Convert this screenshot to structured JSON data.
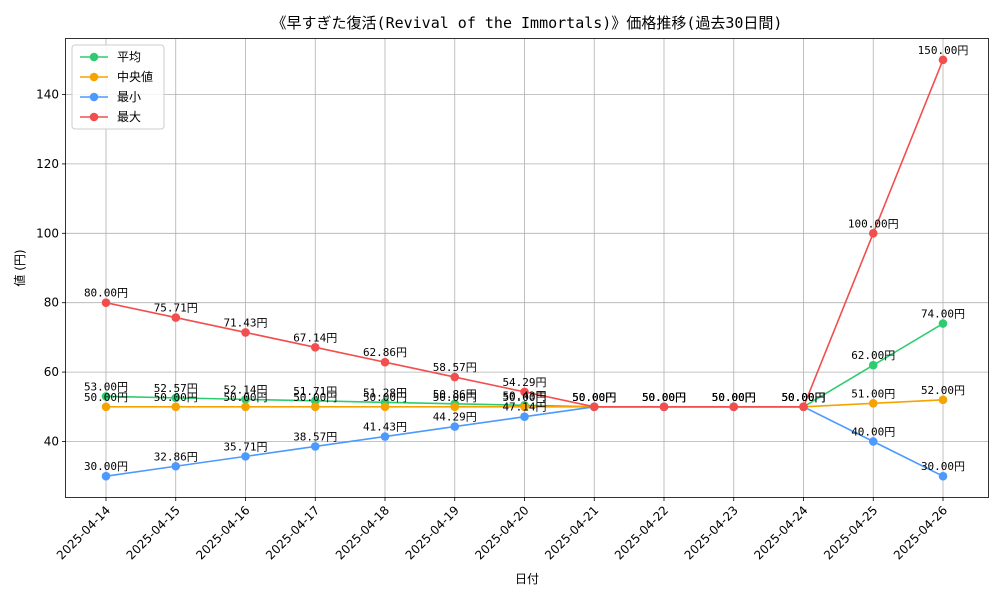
{
  "chart_data": {
    "type": "line",
    "title": "《早すぎた復活(Revival of the Immortals)》価格推移(過去30日間)",
    "xlabel": "日付",
    "ylabel": "値 (円)",
    "categories": [
      "2025-04-14",
      "2025-04-15",
      "2025-04-16",
      "2025-04-17",
      "2025-04-18",
      "2025-04-19",
      "2025-04-20",
      "2025-04-21",
      "2025-04-22",
      "2025-04-23",
      "2025-04-24",
      "2025-04-25",
      "2025-04-26"
    ],
    "ylim": [
      24,
      156
    ],
    "yticks": [
      40,
      60,
      80,
      100,
      120,
      140
    ],
    "grid": true,
    "legend_position": "top-left",
    "value_suffix": "円",
    "series": [
      {
        "name": "平均",
        "color": "#2ecc71",
        "values": [
          53.0,
          52.57,
          52.14,
          51.71,
          51.28,
          50.86,
          50.43,
          50.0,
          50.0,
          50.0,
          50.0,
          62.0,
          74.0
        ]
      },
      {
        "name": "中央値",
        "color": "#f5a300",
        "values": [
          50.0,
          50.0,
          50.0,
          50.0,
          50.0,
          50.0,
          50.0,
          50.0,
          50.0,
          50.0,
          50.0,
          51.0,
          52.0
        ]
      },
      {
        "name": "最小",
        "color": "#4c9aff",
        "values": [
          30.0,
          32.86,
          35.71,
          38.57,
          41.43,
          44.29,
          47.14,
          50.0,
          50.0,
          50.0,
          50.0,
          40.0,
          30.0
        ]
      },
      {
        "name": "最大",
        "color": "#f24e4e",
        "values": [
          80.0,
          75.71,
          71.43,
          67.14,
          62.86,
          58.57,
          54.29,
          50.0,
          50.0,
          50.0,
          50.0,
          100.0,
          150.0
        ]
      }
    ]
  }
}
